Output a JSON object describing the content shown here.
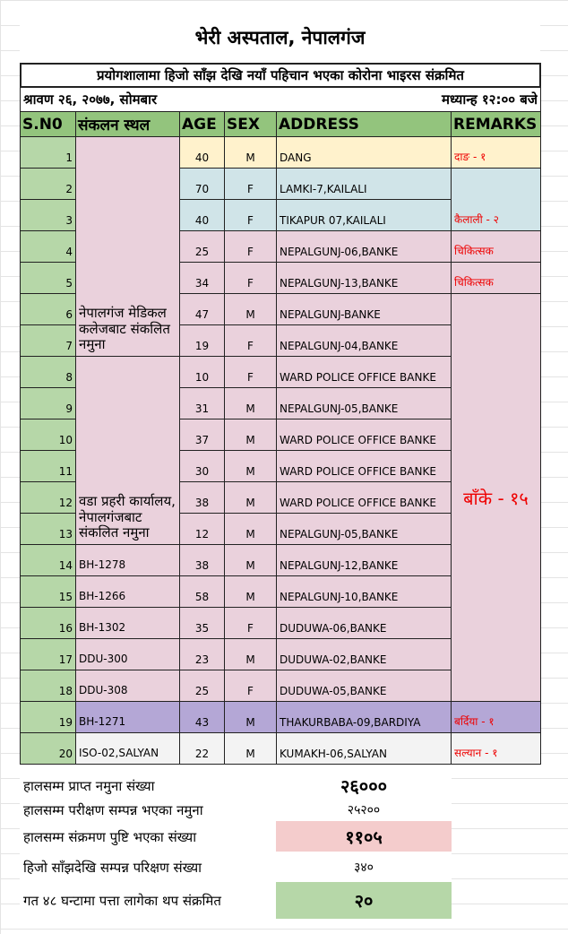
{
  "title": "भेरी अस्पताल, नेपालगंज",
  "subtitle": "प्रयोगशालामा हिजो साँझ देखि नयाँ पहिचान भएका कोरोना भाइरस संक्रमित",
  "date": "श्रावण २६, २०७७,  सोमबार",
  "time": "मध्यान्ह १२:०० बजे",
  "table": {
    "headers": [
      "S.N0",
      "संकलन स्थल",
      "AGE",
      "SEX",
      "ADDRESS",
      "REMARKS"
    ],
    "rows": [
      [
        1,
        "नेपालगंज मेडिकल कलेजबाट संकलित नमुना",
        40,
        "M",
        "DANG",
        "दाङ - १"
      ],
      [
        2,
        null,
        70,
        "F",
        "LAMKI-7,KAILALI",
        "कैलाली - २"
      ],
      [
        3,
        null,
        40,
        "F",
        "TIKAPUR 07,KAILALI",
        null
      ],
      [
        4,
        null,
        25,
        "F",
        "NEPALGUNJ-06,BANKE",
        "चिकित्सक"
      ],
      [
        5,
        null,
        34,
        "F",
        "NEPALGUNJ-13,BANKE",
        "चिकित्सक"
      ],
      [
        6,
        null,
        47,
        "M",
        "NEPALGUNJ-BANKE",
        "बाँके - १५"
      ],
      [
        7,
        null,
        19,
        "F",
        "NEPALGUNJ-04,BANKE",
        null
      ],
      [
        8,
        "वडा प्रहरी कार्यालय, नेपालगंजबाट संकलित नमुना",
        10,
        "F",
        "WARD POLICE OFFICE BANKE",
        null
      ],
      [
        9,
        null,
        31,
        "M",
        "NEPALGUNJ-05,BANKE",
        null
      ],
      [
        10,
        null,
        37,
        "M",
        "WARD POLICE OFFICE BANKE",
        null
      ],
      [
        11,
        null,
        30,
        "M",
        "WARD POLICE OFFICE BANKE",
        null
      ],
      [
        12,
        null,
        38,
        "M",
        "WARD POLICE OFFICE BANKE",
        null
      ],
      [
        13,
        null,
        12,
        "M",
        "NEPALGUNJ-05,BANKE",
        null
      ],
      [
        14,
        "BH-1278",
        38,
        "M",
        "NEPALGUNJ-12,BANKE",
        null
      ],
      [
        15,
        "BH-1266",
        58,
        "M",
        "NEPALGUNJ-10,BANKE",
        null
      ],
      [
        16,
        "BH-1302",
        35,
        "F",
        "DUDUWA-06,BANKE",
        null
      ],
      [
        17,
        "DDU-300",
        23,
        "M",
        "DUDUWA-02,BANKE",
        null
      ],
      [
        18,
        "DDU-308",
        25,
        "F",
        "DUDUWA-05,BANKE",
        null
      ],
      [
        19,
        "BH-1271",
        43,
        "M",
        "THAKURBABA-09,BARDIYA",
        "बर्दिया - १"
      ],
      [
        20,
        "ISO-02,SALYAN",
        22,
        "M",
        "KUMAKH-06,SALYAN",
        "सल्यान - १"
      ]
    ]
  },
  "summary": [
    {
      "label": "हालसम्म प्राप्त नमुना संख्या",
      "value": "२६०००"
    },
    {
      "label": "हालसम्म परीक्षण सम्पन्न भएका नमुना",
      "value": "२५२००"
    },
    {
      "label": "हालसम्म संक्रमण पुष्टि भएका संख्या",
      "value": "११०५"
    },
    {
      "label": "हिजो साँझदेखि सम्पन्न परिक्षण संख्या",
      "value": "३४०"
    },
    {
      "label": "गत ४८ घन्टामा पत्ता लागेका थप संक्रमित",
      "value": "२०"
    }
  ]
}
